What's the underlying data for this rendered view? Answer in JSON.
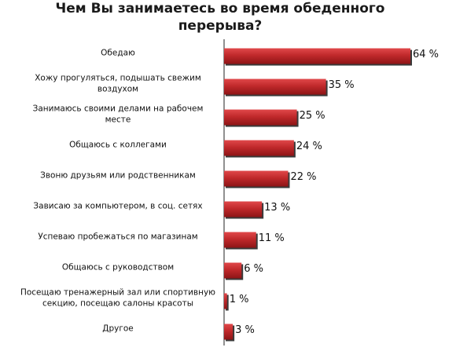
{
  "chart_data": {
    "type": "bar",
    "orientation": "horizontal",
    "title": "Чем Вы занимаетесь во время обеденного перерыва?",
    "categories": [
      [
        "Обедаю"
      ],
      [
        "Хожу прогуляться, подышать свежим",
        "воздухом"
      ],
      [
        "Занимаюсь своими делами на рабочем",
        "месте"
      ],
      [
        "Общаюсь с коллегами"
      ],
      [
        "Звоню друзьям или родственникам"
      ],
      [
        "Зависаю за компьютером, в соц. сетях"
      ],
      [
        "Успеваю пробежаться по магазинам"
      ],
      [
        "Общаюсь с руководством"
      ],
      [
        "Посещаю тренажерный зал или спортивную",
        "секцию, посещаю салоны красоты"
      ],
      [
        "Другое"
      ]
    ],
    "values": [
      64,
      35,
      25,
      24,
      22,
      13,
      11,
      6,
      1,
      3
    ],
    "value_labels": [
      "64 %",
      "35 %",
      "25 %",
      "24 %",
      "22 %",
      "13 %",
      "11 %",
      "6 %",
      "1 %",
      "3 %"
    ],
    "xlim": [
      0,
      64
    ],
    "grid": false,
    "legend": "none",
    "bar_color": "#c0292b",
    "bar_shadow_color": "#3a3a3a"
  }
}
